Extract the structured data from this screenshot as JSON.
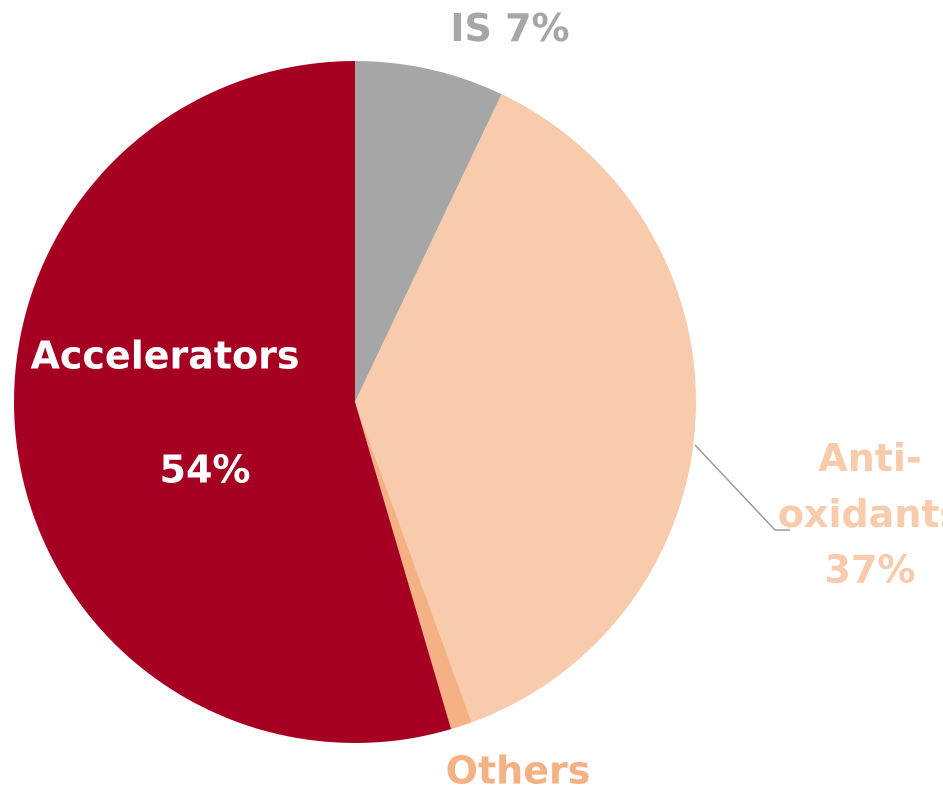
{
  "chart_data": {
    "type": "pie",
    "categories": [
      "IS",
      "Anti-oxidants",
      "Others",
      "Accelerators"
    ],
    "values": [
      7,
      37,
      1,
      54
    ],
    "value_labels": [
      "7%",
      "37%",
      null,
      "54%"
    ],
    "colors": [
      "#a6a6a6",
      "#f8cbad",
      "#f4b183",
      "#a50021"
    ]
  }
}
